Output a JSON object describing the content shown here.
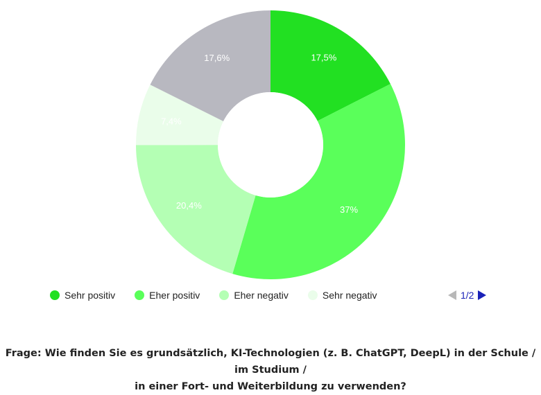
{
  "chart_data": {
    "type": "pie",
    "donut": true,
    "slices": [
      {
        "label": "Sehr positiv",
        "value": 17.5,
        "display": "17,5%",
        "color": "#22e022"
      },
      {
        "label": "Eher positiv",
        "value": 37,
        "display": "37%",
        "color": "#5aff5a"
      },
      {
        "label": "Eher negativ",
        "value": 20.4,
        "display": "20,4%",
        "color": "#b4ffb4"
      },
      {
        "label": "Sehr negativ",
        "value": 7.4,
        "display": "7,4%",
        "color": "#eafdea"
      },
      {
        "label": "",
        "value": 17.6,
        "display": "17,6%",
        "color": "#b8b8c0"
      }
    ],
    "legend_position": "bottom"
  },
  "legend": {
    "items": [
      {
        "label": "Sehr positiv",
        "color": "#22e022"
      },
      {
        "label": "Eher positiv",
        "color": "#5aff5a"
      },
      {
        "label": "Eher negativ",
        "color": "#b4ffb4"
      },
      {
        "label": "Sehr negativ",
        "color": "#eafdea"
      }
    ]
  },
  "pager": {
    "text": "1/2"
  },
  "question": {
    "line1": "Frage: Wie finden Sie es grundsätzlich, KI-Technologien (z. B. ChatGPT, DeepL) in der Schule / im Studium /",
    "line2": "in einer Fort- und Weiterbildung zu verwenden?"
  }
}
